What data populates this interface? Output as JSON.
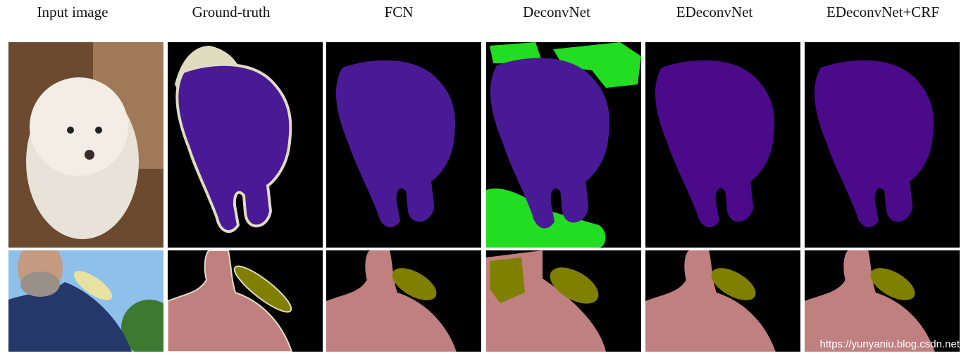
{
  "headers": [
    "Input image",
    "Ground-truth",
    "FCN",
    "DeconvNet",
    "EDeconvNet",
    "EDeconvNet+CRF"
  ],
  "watermark": "https://yunyaniu.blog.csdn.net"
}
